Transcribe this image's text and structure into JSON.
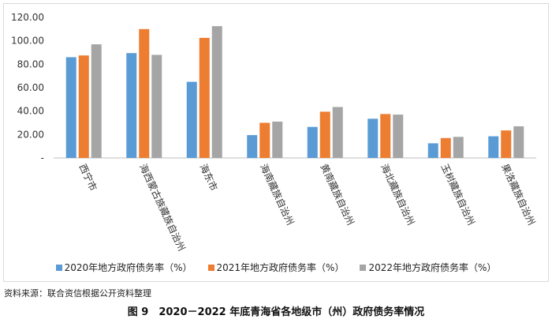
{
  "chart_data": {
    "type": "bar",
    "categories": [
      "西宁市",
      "海西蒙古族藏族自治州",
      "海东市",
      "海南藏族自治州",
      "黄南藏族自治州",
      "海北藏族自治州",
      "玉树藏族自治州",
      "果洛藏族自治州"
    ],
    "series": [
      {
        "name": "2020年地方政府债务率（%）",
        "color": "#5B9BD5",
        "values": [
          86,
          89.5,
          65,
          19.5,
          26.5,
          33.5,
          12.5,
          18.5
        ]
      },
      {
        "name": "2021年地方政府债务率（%）",
        "color": "#ED7D31",
        "values": [
          87.5,
          110,
          102.5,
          30,
          39.5,
          37.5,
          17,
          23.5
        ]
      },
      {
        "name": "2022年地方政府债务率（%）",
        "color": "#A5A5A5",
        "values": [
          97,
          88,
          112.5,
          31,
          43.5,
          37,
          18,
          27
        ]
      }
    ],
    "yticks": [
      "-",
      "20.00",
      "40.00",
      "60.00",
      "80.00",
      "100.00",
      "120.00"
    ],
    "ylim": [
      0,
      120
    ],
    "grid": false,
    "legend_position": "bottom"
  },
  "source_note": "资料来源：联合资信根据公开资料整理",
  "caption": "图 9　2020－2022 年底青海省各地级市（州）政府债务率情况"
}
